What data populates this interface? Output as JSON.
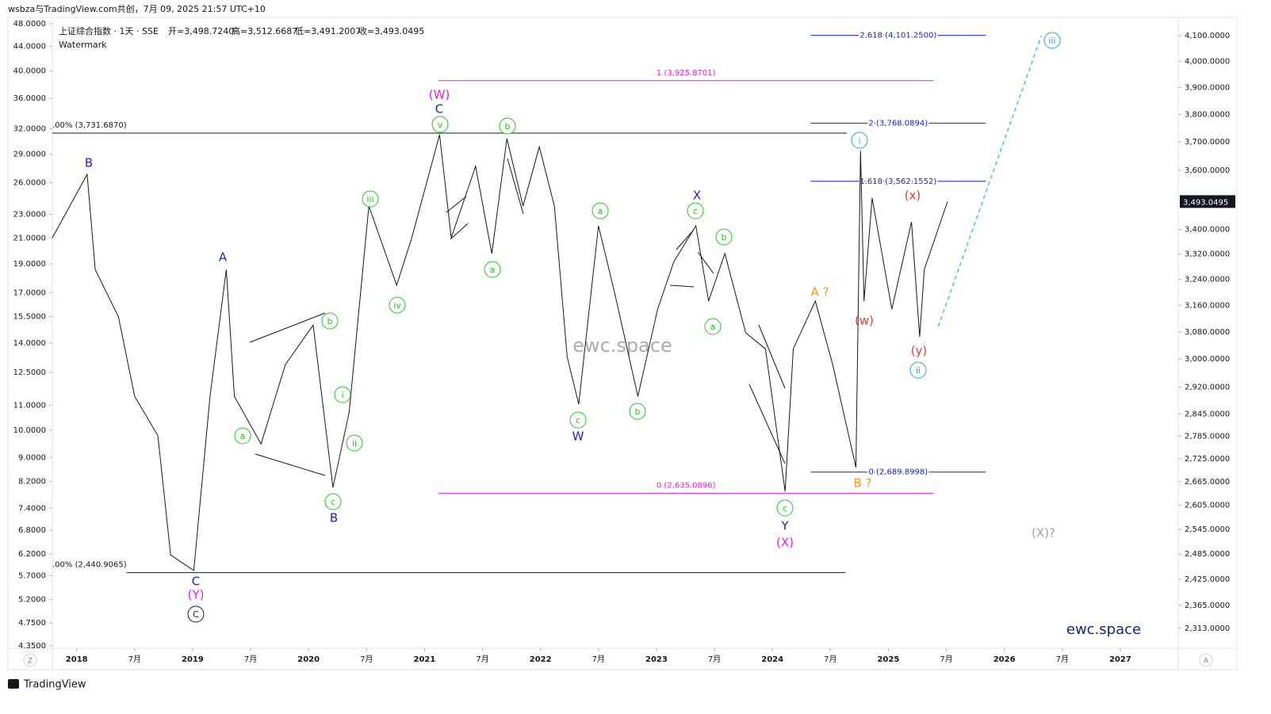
{
  "header": {
    "text": "wsbza与TradingView.com共创，7月 09, 2025 21:57 UTC+10"
  },
  "legend": {
    "symbol": "上证综合指数 · 1天 · SSE",
    "ohlc": [
      "开=3,498.7240",
      "高=3,512.6687",
      "低=3,491.2007",
      "收=3,493.0495"
    ],
    "watermark": "Watermark"
  },
  "watermarks": {
    "center": "ewc.space",
    "corner": "ewc.space"
  },
  "footer": {
    "logo": "TradingView",
    "left_button": "Z",
    "right_button": "A"
  },
  "chart_data": {
    "type": "line",
    "ylog": true,
    "ylim": [
      2269,
      4173
    ],
    "yticks": [
      {
        "value": 4100,
        "label": "4,100.0000"
      },
      {
        "value": 4000,
        "label": "4,000.0000"
      },
      {
        "value": 3900,
        "label": "3,900.0000"
      },
      {
        "value": 3800,
        "label": "3,800.0000"
      },
      {
        "value": 3700,
        "label": "3,700.0000"
      },
      {
        "value": 3600,
        "label": "3,600.0000"
      },
      {
        "value": 3400,
        "label": "3,400.0000"
      },
      {
        "value": 3320,
        "label": "3,320.0000"
      },
      {
        "value": 3240,
        "label": "3,240.0000"
      },
      {
        "value": 3160,
        "label": "3,160.0000"
      },
      {
        "value": 3080,
        "label": "3,080.0000"
      },
      {
        "value": 3000,
        "label": "3,000.0000"
      },
      {
        "value": 2920,
        "label": "2,920.0000"
      },
      {
        "value": 2845,
        "label": "2,845.0000"
      },
      {
        "value": 2785,
        "label": "2,785.0000"
      },
      {
        "value": 2725,
        "label": "2,725.0000"
      },
      {
        "value": 2665,
        "label": "2,665.0000"
      },
      {
        "value": 2605,
        "label": "2,605.0000"
      },
      {
        "value": 2545,
        "label": "2,545.0000"
      },
      {
        "value": 2485,
        "label": "2,485.0000"
      },
      {
        "value": 2425,
        "label": "2,425.0000"
      },
      {
        "value": 2365,
        "label": "2,365.0000"
      },
      {
        "value": 2313,
        "label": "2,313.0000"
      }
    ],
    "y2log": true,
    "y2lim": [
      4.31,
      49.19
    ],
    "y2ticks": [
      {
        "value": 48,
        "label": "48.0000"
      },
      {
        "value": 44,
        "label": "44.0000"
      },
      {
        "value": 40,
        "label": "40.0000"
      },
      {
        "value": 36,
        "label": "36.0000"
      },
      {
        "value": 32,
        "label": "32.0000"
      },
      {
        "value": 29,
        "label": "29.0000"
      },
      {
        "value": 26,
        "label": "26.0000"
      },
      {
        "value": 23,
        "label": "23.0000"
      },
      {
        "value": 21,
        "label": "21.0000"
      },
      {
        "value": 19,
        "label": "19.0000"
      },
      {
        "value": 17,
        "label": "17.0000"
      },
      {
        "value": 15.5,
        "label": "15.5000"
      },
      {
        "value": 14,
        "label": "14.0000"
      },
      {
        "value": 12.5,
        "label": "12.5000"
      },
      {
        "value": 11,
        "label": "11.0000"
      },
      {
        "value": 10,
        "label": "10.0000"
      },
      {
        "value": 9,
        "label": "9.0000"
      },
      {
        "value": 8.2,
        "label": "8.2000"
      },
      {
        "value": 7.4,
        "label": "7.4000"
      },
      {
        "value": 6.8,
        "label": "6.8000"
      },
      {
        "value": 6.2,
        "label": "6.2000"
      },
      {
        "value": 5.7,
        "label": "5.7000"
      },
      {
        "value": 5.2,
        "label": "5.2000"
      },
      {
        "value": 4.75,
        "label": "4.7500"
      },
      {
        "value": 4.35,
        "label": "4.3500"
      }
    ],
    "xlim": [
      2017.79,
      2027.5
    ],
    "xticks": [
      2018,
      {
        "value": 2018.5,
        "label": "7月"
      },
      2019,
      {
        "value": 2019.5,
        "label": "7月"
      },
      2020,
      {
        "value": 2020.5,
        "label": "7月"
      },
      2021,
      {
        "value": 2021.5,
        "label": "7月"
      },
      2022,
      {
        "value": 2022.5,
        "label": "7月"
      },
      2023,
      {
        "value": 2023.5,
        "label": "7月"
      },
      2024,
      {
        "value": 2024.5,
        "label": "7月"
      },
      2025,
      {
        "value": 2025.5,
        "label": "7月"
      },
      2026,
      {
        "value": 2026.5,
        "label": "7月"
      },
      2027
    ],
    "last_price": {
      "value": 3493.0495,
      "label": "3,493.0495"
    },
    "series": [
      {
        "color": "#131722",
        "dash": false,
        "x": [
          2017.79,
          2018.09,
          2018.16,
          2018.36,
          2018.5,
          2018.7,
          2018.81,
          2019.01,
          2019.15,
          2019.29,
          2019.36,
          2019.59,
          2019.8,
          2020.04,
          2020.21,
          2020.35,
          2020.52,
          2020.76,
          2020.89,
          2021.13,
          2021.23,
          2021.44,
          2021.58,
          2021.71,
          2021.85,
          2021.99,
          2022.12,
          2022.23,
          2022.33,
          2022.5,
          2022.64,
          2022.84,
          2023.01,
          2023.15,
          2023.34,
          2023.45,
          2023.59,
          2023.77,
          2023.94,
          2024.11,
          2024.18,
          2024.37,
          2024.52,
          2024.72,
          2024.76,
          2024.79,
          2024.86,
          2025.03,
          2025.2,
          2025.27,
          2025.31,
          2025.51
        ],
        "values": [
          3373,
          3586,
          3271,
          3125,
          2894,
          2786,
          2483,
          2446,
          2894,
          3271,
          2894,
          2764,
          2984,
          3100,
          2650,
          2850,
          3478,
          3222,
          3373,
          3726,
          3373,
          3614,
          3322,
          3712,
          3478,
          3683,
          3478,
          3007,
          2872,
          3412,
          3197,
          2894,
          3148,
          3296,
          3412,
          3173,
          3322,
          3077,
          3030,
          2640,
          3030,
          3173,
          2984,
          2702,
          3669,
          3173,
          3505,
          3148,
          3425,
          3065,
          3271,
          3493
        ]
      },
      {
        "color": "#33b8e0",
        "dash": true,
        "x": [
          2025.43,
          2026.32
        ],
        "values": [
          3096,
          4100
        ]
      }
    ],
    "levels": [
      {
        "label": "2.618 (4,101.2500)",
        "value": 4101.25,
        "color": "#1a23c8",
        "x": [
          2024.33,
          2025.84
        ]
      },
      {
        "label": "1 (3,925.8701)",
        "value": 3925.8701,
        "color": "#e020e0",
        "x": [
          2021.12,
          2025.39
        ]
      },
      {
        "label": "2 (3,768.0894)",
        "value": 3768.0894,
        "color": "#1a23c8",
        "x": [
          2024.33,
          2025.84
        ]
      },
      {
        "label": ".00% (3,731.6870)",
        "value": 3731.687,
        "color": "#131722",
        "x": [
          2017.79,
          2024.64
        ]
      },
      {
        "label": "1.618 (3,562.1552)",
        "value": 3562.1552,
        "color": "#1a23c8",
        "x": [
          2024.33,
          2025.84
        ]
      },
      {
        "label": "0 (2,689.8998)",
        "value": 2689.8998,
        "color": "#1a23c8",
        "x": [
          2024.33,
          2025.84
        ]
      },
      {
        "label": "0 (2,635.0896)",
        "value": 2635.0896,
        "color": "#e020e0",
        "x": [
          2021.12,
          2025.39
        ]
      },
      {
        "label": ".00% (2,440.9065)",
        "value": 2440.9065,
        "color": "#131722",
        "x": [
          2018.43,
          2024.63
        ]
      }
    ],
    "wave_labels": [
      {
        "text": "B",
        "color": "#1a23c8",
        "circled": false
      },
      {
        "text": "A",
        "color": "#1a23c8",
        "circled": false
      },
      {
        "text": "C",
        "color": "#1a23c8",
        "circled": false
      },
      {
        "text": "(Y)",
        "color": "#e020e0",
        "circled": false
      },
      {
        "text": "C",
        "color": "#131722",
        "circled": true
      },
      {
        "text": "a",
        "color": "#22c822",
        "circled": true
      },
      {
        "text": "b",
        "color": "#22c822",
        "circled": true
      },
      {
        "text": "c",
        "color": "#22c822",
        "circled": true
      },
      {
        "text": "B",
        "color": "#1a23c8",
        "circled": false
      },
      {
        "text": "i",
        "color": "#22c822",
        "circled": true
      },
      {
        "text": "ii",
        "color": "#22c822",
        "circled": true
      },
      {
        "text": "iii",
        "color": "#22c822",
        "circled": true
      },
      {
        "text": "iv",
        "color": "#22c822",
        "circled": true
      },
      {
        "text": "v",
        "color": "#22c822",
        "circled": true
      },
      {
        "text": "C",
        "color": "#1a23c8",
        "circled": false
      },
      {
        "text": "(W)",
        "color": "#e020e0",
        "circled": false
      },
      {
        "text": "b",
        "color": "#22c822",
        "circled": true
      },
      {
        "text": "a",
        "color": "#22c822",
        "circled": true
      },
      {
        "text": "a",
        "color": "#22c822",
        "circled": true
      },
      {
        "text": "c",
        "color": "#22c822",
        "circled": true
      },
      {
        "text": "W",
        "color": "#1a23c8",
        "circled": false
      },
      {
        "text": "b",
        "color": "#22c822",
        "circled": true
      },
      {
        "text": "X",
        "color": "#1a23c8",
        "circled": false
      },
      {
        "text": "c",
        "color": "#22c822",
        "circled": true
      },
      {
        "text": "b",
        "color": "#22c822",
        "circled": true
      },
      {
        "text": "a",
        "color": "#22c822",
        "circled": true
      },
      {
        "text": "c",
        "color": "#22c822",
        "circled": true
      },
      {
        "text": "Y",
        "color": "#1a23c8",
        "circled": false
      },
      {
        "text": "(X)",
        "color": "#e020e0",
        "circled": false
      },
      {
        "text": "A ?",
        "color": "#f59a1a",
        "circled": false
      },
      {
        "text": "B ?",
        "color": "#f59a1a",
        "circled": false
      },
      {
        "text": "(w)",
        "color": "#e83a3a",
        "circled": false
      },
      {
        "text": "i",
        "color": "#22aacc",
        "circled": true
      },
      {
        "text": "(x)",
        "color": "#e83a3a",
        "circled": false
      },
      {
        "text": "(y)",
        "color": "#e83a3a",
        "circled": false
      },
      {
        "text": "ii",
        "color": "#22aacc",
        "circled": true
      },
      {
        "text": "iii",
        "color": "#22aacc",
        "circled": true
      },
      {
        "text": "(X)?",
        "color": "#a0a0a8",
        "circled": false
      }
    ]
  }
}
